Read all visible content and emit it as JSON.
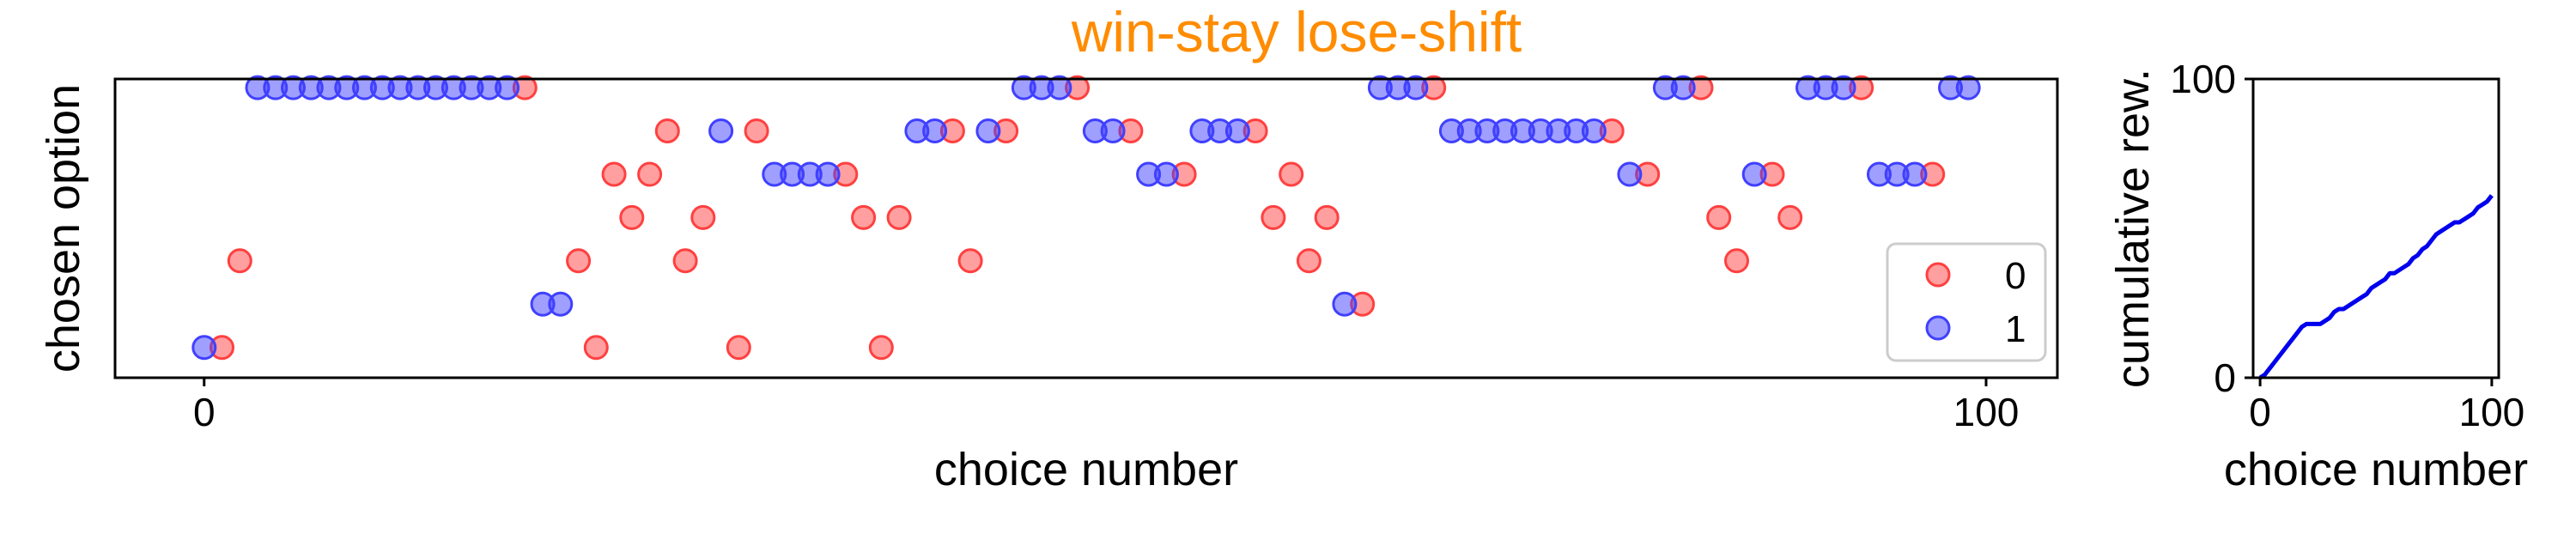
{
  "figure": {
    "title": "win-stay lose-shift",
    "title_color": "#FF8C00"
  },
  "chart_data": [
    {
      "type": "scatter",
      "title": "win-stay lose-shift",
      "xlabel": "choice number",
      "ylabel": "chosen option",
      "xlim": [
        -5,
        104
      ],
      "ylim": [
        -0.7,
        6.2
      ],
      "xticks": [
        0,
        100
      ],
      "xtick_labels": [
        "0",
        "100"
      ],
      "yticks": [],
      "grid": false,
      "legend": {
        "placement": "lower-right",
        "entries": [
          {
            "label": "0",
            "color": "#FF4040"
          },
          {
            "label": "1",
            "color": "#4040FF"
          }
        ]
      },
      "series": [
        {
          "name": "0",
          "color": "#FF4040",
          "points": [
            [
              1,
              0
            ],
            [
              2,
              2
            ],
            [
              18,
              6
            ],
            [
              21,
              2
            ],
            [
              22,
              0
            ],
            [
              23,
              4
            ],
            [
              24,
              3
            ],
            [
              25,
              4
            ],
            [
              26,
              5
            ],
            [
              27,
              2
            ],
            [
              28,
              3
            ],
            [
              30,
              0
            ],
            [
              31,
              5
            ],
            [
              36,
              4
            ],
            [
              37,
              3
            ],
            [
              38,
              0
            ],
            [
              39,
              3
            ],
            [
              42,
              5
            ],
            [
              43,
              2
            ],
            [
              45,
              5
            ],
            [
              49,
              6
            ],
            [
              52,
              5
            ],
            [
              55,
              4
            ],
            [
              59,
              5
            ],
            [
              60,
              3
            ],
            [
              61,
              4
            ],
            [
              62,
              2
            ],
            [
              63,
              3
            ],
            [
              65,
              1
            ],
            [
              69,
              6
            ],
            [
              79,
              5
            ],
            [
              81,
              4
            ],
            [
              84,
              6
            ],
            [
              85,
              3
            ],
            [
              86,
              2
            ],
            [
              88,
              4
            ],
            [
              89,
              3
            ],
            [
              93,
              6
            ],
            [
              97,
              4
            ]
          ]
        },
        {
          "name": "1",
          "color": "#4040FF",
          "points": [
            [
              0,
              0
            ],
            [
              3,
              6
            ],
            [
              4,
              6
            ],
            [
              5,
              6
            ],
            [
              6,
              6
            ],
            [
              7,
              6
            ],
            [
              8,
              6
            ],
            [
              9,
              6
            ],
            [
              10,
              6
            ],
            [
              11,
              6
            ],
            [
              12,
              6
            ],
            [
              13,
              6
            ],
            [
              14,
              6
            ],
            [
              15,
              6
            ],
            [
              16,
              6
            ],
            [
              17,
              6
            ],
            [
              19,
              1
            ],
            [
              20,
              1
            ],
            [
              29,
              5
            ],
            [
              32,
              4
            ],
            [
              33,
              4
            ],
            [
              34,
              4
            ],
            [
              35,
              4
            ],
            [
              40,
              5
            ],
            [
              41,
              5
            ],
            [
              44,
              5
            ],
            [
              46,
              6
            ],
            [
              47,
              6
            ],
            [
              48,
              6
            ],
            [
              50,
              5
            ],
            [
              51,
              5
            ],
            [
              53,
              4
            ],
            [
              54,
              4
            ],
            [
              56,
              5
            ],
            [
              57,
              5
            ],
            [
              58,
              5
            ],
            [
              64,
              1
            ],
            [
              66,
              6
            ],
            [
              67,
              6
            ],
            [
              68,
              6
            ],
            [
              70,
              5
            ],
            [
              71,
              5
            ],
            [
              72,
              5
            ],
            [
              73,
              5
            ],
            [
              74,
              5
            ],
            [
              75,
              5
            ],
            [
              76,
              5
            ],
            [
              77,
              5
            ],
            [
              78,
              5
            ],
            [
              80,
              4
            ],
            [
              82,
              6
            ],
            [
              83,
              6
            ],
            [
              87,
              4
            ],
            [
              90,
              6
            ],
            [
              91,
              6
            ],
            [
              92,
              6
            ],
            [
              94,
              4
            ],
            [
              95,
              4
            ],
            [
              96,
              4
            ],
            [
              98,
              6
            ],
            [
              99,
              6
            ]
          ]
        }
      ]
    },
    {
      "type": "line",
      "title": "",
      "xlabel": "choice number",
      "ylabel": "cumulative rew.",
      "xlim": [
        -3,
        103
      ],
      "ylim": [
        0,
        100
      ],
      "xticks": [
        0,
        100
      ],
      "xtick_labels": [
        "0",
        "100"
      ],
      "yticks": [
        0,
        100
      ],
      "ytick_labels": [
        "0",
        "100"
      ],
      "grid": false,
      "series": [
        {
          "color": "#0000EE",
          "x": [
            0,
            2,
            4,
            6,
            8,
            10,
            12,
            14,
            16,
            18,
            20,
            22,
            24,
            26,
            28,
            30,
            32,
            34,
            36,
            38,
            40,
            42,
            44,
            46,
            48,
            50,
            52,
            54,
            56,
            58,
            60,
            62,
            64,
            66,
            68,
            70,
            72,
            74,
            76,
            78,
            80,
            82,
            84,
            86,
            88,
            90,
            92,
            94,
            96,
            98,
            100
          ],
          "y": [
            0,
            1,
            3,
            5,
            7,
            9,
            11,
            13,
            15,
            17,
            18,
            18,
            18,
            18,
            19,
            20,
            22,
            23,
            23,
            24,
            25,
            26,
            27,
            28,
            30,
            31,
            32,
            33,
            35,
            35,
            36,
            37,
            38,
            40,
            41,
            43,
            44,
            46,
            48,
            49,
            50,
            51,
            52,
            52,
            53,
            54,
            55,
            57,
            58,
            59,
            61
          ]
        }
      ]
    }
  ]
}
